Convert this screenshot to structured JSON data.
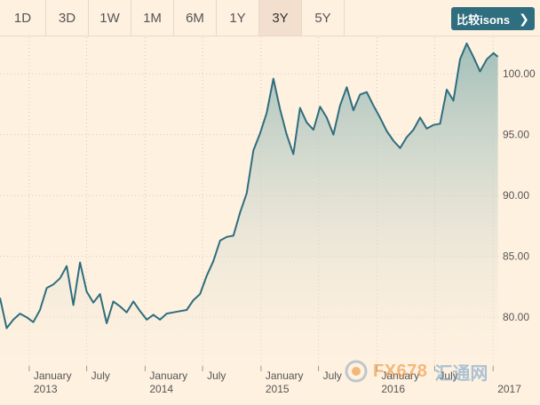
{
  "toolbar": {
    "range_tabs": [
      "1D",
      "3D",
      "1W",
      "1M",
      "6M",
      "1Y",
      "3Y",
      "5Y"
    ],
    "active_tab": "3Y",
    "compare_label": "比较isons",
    "compare_icon": "chevron-right-icon"
  },
  "watermark": {
    "brand": "FX678",
    "brand_cn": "汇通网"
  },
  "colors": {
    "line": "#2e6e7e",
    "fill_top": "#9dbcb8",
    "background": "#fff1e0",
    "button": "#2e6e7e"
  },
  "chart_data": {
    "type": "area",
    "title": "",
    "xlabel": "",
    "ylabel": "",
    "ylim": [
      76.0,
      103.0
    ],
    "yticks": [
      80.0,
      85.0,
      90.0,
      95.0,
      100.0
    ],
    "ytick_labels": [
      "80.00",
      "85.00",
      "90.00",
      "95.00",
      "100.00"
    ],
    "xlim": [
      "2012-10-01",
      "2017-01-20"
    ],
    "xticks": [
      {
        "date": "2013-01-01",
        "label": "January",
        "year": "2013"
      },
      {
        "date": "2013-07-01",
        "label": "July",
        "year": ""
      },
      {
        "date": "2014-01-01",
        "label": "January",
        "year": "2014"
      },
      {
        "date": "2014-07-01",
        "label": "July",
        "year": ""
      },
      {
        "date": "2015-01-01",
        "label": "January",
        "year": "2015"
      },
      {
        "date": "2015-07-01",
        "label": "July",
        "year": ""
      },
      {
        "date": "2016-01-01",
        "label": "January",
        "year": "2016"
      },
      {
        "date": "2016-07-01",
        "label": "July",
        "year": ""
      },
      {
        "date": "2017-01-01",
        "label": "",
        "year": "2017"
      }
    ],
    "grid": true,
    "series": [
      {
        "points": [
          [
            "2012-10-01",
            81.6
          ],
          [
            "2012-10-22",
            79.1
          ],
          [
            "2012-11-12",
            79.8
          ],
          [
            "2012-12-03",
            80.3
          ],
          [
            "2012-12-24",
            80.0
          ],
          [
            "2013-01-14",
            79.6
          ],
          [
            "2013-02-04",
            80.6
          ],
          [
            "2013-02-25",
            82.4
          ],
          [
            "2013-03-18",
            82.7
          ],
          [
            "2013-04-08",
            83.2
          ],
          [
            "2013-04-29",
            84.2
          ],
          [
            "2013-05-20",
            81.0
          ],
          [
            "2013-06-10",
            84.5
          ],
          [
            "2013-07-01",
            82.1
          ],
          [
            "2013-07-22",
            81.2
          ],
          [
            "2013-08-12",
            81.9
          ],
          [
            "2013-09-02",
            79.5
          ],
          [
            "2013-09-23",
            81.3
          ],
          [
            "2013-10-14",
            80.9
          ],
          [
            "2013-11-04",
            80.4
          ],
          [
            "2013-11-25",
            81.3
          ],
          [
            "2013-12-16",
            80.5
          ],
          [
            "2014-01-06",
            79.8
          ],
          [
            "2014-01-27",
            80.2
          ],
          [
            "2014-02-17",
            79.8
          ],
          [
            "2014-03-10",
            80.3
          ],
          [
            "2014-03-31",
            80.4
          ],
          [
            "2014-04-21",
            80.5
          ],
          [
            "2014-05-12",
            80.6
          ],
          [
            "2014-06-02",
            81.4
          ],
          [
            "2014-06-23",
            81.9
          ],
          [
            "2014-07-14",
            83.4
          ],
          [
            "2014-08-04",
            84.6
          ],
          [
            "2014-08-25",
            86.3
          ],
          [
            "2014-09-15",
            86.6
          ],
          [
            "2014-10-06",
            86.7
          ],
          [
            "2014-10-27",
            88.6
          ],
          [
            "2014-11-17",
            90.2
          ],
          [
            "2014-12-08",
            93.7
          ],
          [
            "2014-12-29",
            95.1
          ],
          [
            "2015-01-19",
            96.8
          ],
          [
            "2015-02-09",
            99.6
          ],
          [
            "2015-03-02",
            97.1
          ],
          [
            "2015-03-23",
            95.0
          ],
          [
            "2015-04-13",
            93.4
          ],
          [
            "2015-05-04",
            97.2
          ],
          [
            "2015-05-25",
            96.0
          ],
          [
            "2015-06-15",
            95.4
          ],
          [
            "2015-07-06",
            97.3
          ],
          [
            "2015-07-27",
            96.4
          ],
          [
            "2015-08-17",
            95.0
          ],
          [
            "2015-09-07",
            97.4
          ],
          [
            "2015-09-28",
            98.9
          ],
          [
            "2015-10-19",
            97.0
          ],
          [
            "2015-11-09",
            98.3
          ],
          [
            "2015-11-30",
            98.5
          ],
          [
            "2015-12-21",
            97.4
          ],
          [
            "2016-01-11",
            96.4
          ],
          [
            "2016-02-01",
            95.3
          ],
          [
            "2016-02-22",
            94.5
          ],
          [
            "2016-03-14",
            93.9
          ],
          [
            "2016-04-04",
            94.8
          ],
          [
            "2016-04-25",
            95.4
          ],
          [
            "2016-05-16",
            96.4
          ],
          [
            "2016-06-06",
            95.5
          ],
          [
            "2016-06-27",
            95.8
          ],
          [
            "2016-07-18",
            95.9
          ],
          [
            "2016-08-08",
            98.7
          ],
          [
            "2016-08-29",
            97.8
          ],
          [
            "2016-09-19",
            101.2
          ],
          [
            "2016-10-10",
            102.5
          ],
          [
            "2016-10-31",
            101.4
          ],
          [
            "2016-11-21",
            100.2
          ],
          [
            "2016-12-12",
            101.2
          ],
          [
            "2017-01-02",
            101.7
          ],
          [
            "2017-01-16",
            101.4
          ]
        ]
      }
    ]
  }
}
